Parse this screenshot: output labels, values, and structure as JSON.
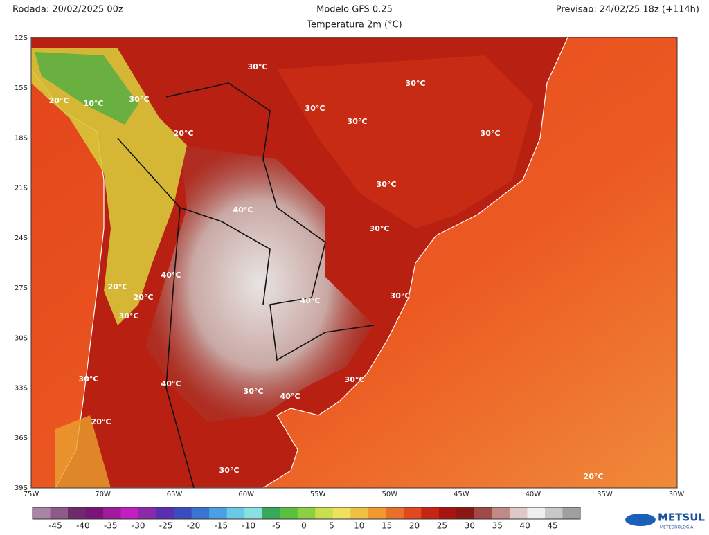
{
  "header": {
    "run": "Rodada: 20/02/2025 00z",
    "model": "Modelo GFS 0.25",
    "forecast": "Previsao: 24/02/25 18z (+114h)",
    "variable": "Temperatura 2m (°C)"
  },
  "map": {
    "lat_labels": [
      "12S",
      "15S",
      "18S",
      "21S",
      "24S",
      "27S",
      "30S",
      "33S",
      "36S",
      "39S"
    ],
    "lon_labels": [
      "75W",
      "70W",
      "65W",
      "60W",
      "55W",
      "50W",
      "45W",
      "40W",
      "35W",
      "30W"
    ],
    "contour_labels": [
      "30°C",
      "30°C",
      "30°C",
      "30°C",
      "30°C",
      "10°C",
      "30°C",
      "20°C",
      "20°C",
      "30°C",
      "40°C",
      "30°C",
      "40°C",
      "20°C",
      "20°C",
      "30°C",
      "40°C",
      "30°C",
      "30°C",
      "40°C",
      "30°C",
      "30°C",
      "40°C",
      "20°C",
      "30°C",
      "20°C"
    ]
  },
  "colorbar": {
    "labels": [
      "-45",
      "-40",
      "-35",
      "-30",
      "-25",
      "-20",
      "-15",
      "-10",
      "-5",
      "0",
      "5",
      "10",
      "15",
      "20",
      "25",
      "30",
      "35",
      "40",
      "45"
    ],
    "colors": [
      "#a985a5",
      "#8e5a88",
      "#6e2a6c",
      "#7a1478",
      "#a01a9c",
      "#c21ec0",
      "#8a2aa8",
      "#5a30b0",
      "#3a4cc0",
      "#3a74d0",
      "#4aa0e0",
      "#6ac8e8",
      "#8ae0e0",
      "#3aa85a",
      "#5ac040",
      "#8ad040",
      "#c8e050",
      "#f0e060",
      "#f0c040",
      "#f09a30",
      "#e8702a",
      "#e04a1e",
      "#c82414",
      "#a81410",
      "#8a1812",
      "#a04a48",
      "#c08a88",
      "#e0c8c6",
      "#f0eeee",
      "#c8c8c8",
      "#a0a0a0"
    ]
  },
  "logo": {
    "name": "METSUL",
    "tagline": "METEOROLOGIA"
  }
}
